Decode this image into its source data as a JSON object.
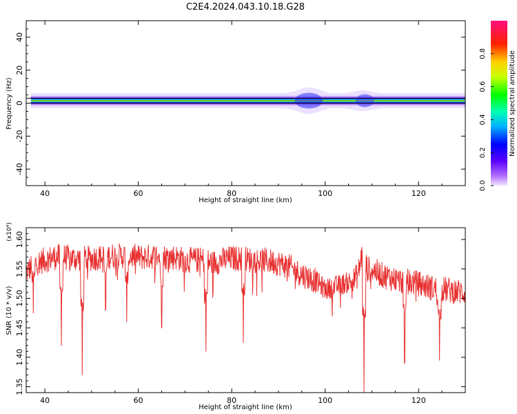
{
  "title": "C2E4.2024.043.10.18.G28",
  "chart_data": [
    {
      "type": "heatmap",
      "xlabel": "Height of straight line (km)",
      "ylabel": "Frequency (Hz)",
      "xlim": [
        36,
        130
      ],
      "ylim": [
        -50,
        50
      ],
      "xticks": [
        40,
        60,
        80,
        100,
        120
      ],
      "yticks": [
        -40,
        -20,
        0,
        20,
        40
      ],
      "colorbar": {
        "label": "Normalized spectral amplitude",
        "range": [
          0,
          1
        ],
        "ticks": [
          0.0,
          0.2,
          0.4,
          0.6,
          0.8
        ],
        "colormap": "rainbow (purple-blue-cyan-green-yellow-red-magenta)"
      },
      "band": {
        "center_hz": 1.5,
        "core_halfwidth_hz": 1.0,
        "note": "narrow high-amplitude band near 0-3 Hz across all heights; broadening near 93-100 km and 104-110 km"
      },
      "reference_lines_hz": [
        0,
        3
      ]
    },
    {
      "type": "line",
      "xlabel": "Height of straight line (km)",
      "ylabel": "SNR (10 * v/v)",
      "y_multiplier": "(x10⁴)",
      "xlim": [
        36,
        130
      ],
      "ylim": [
        1.34,
        1.62
      ],
      "xticks": [
        40,
        60,
        80,
        100,
        120
      ],
      "yticks": [
        1.35,
        1.4,
        1.45,
        1.5,
        1.55,
        1.6
      ],
      "line_color": "#e83030",
      "series": [
        {
          "x": [
            36,
            38,
            40,
            42,
            44,
            46,
            48,
            50,
            52,
            54,
            56,
            58,
            60,
            62,
            64,
            66,
            68,
            70,
            72,
            74,
            76,
            78,
            80,
            82,
            84,
            86,
            88,
            90,
            92,
            94,
            96,
            98,
            100,
            102,
            104,
            106,
            107,
            108,
            109,
            110,
            112,
            114,
            116,
            118,
            120,
            122,
            124,
            126,
            128,
            130
          ],
          "values": [
            1.545,
            1.56,
            1.565,
            1.57,
            1.57,
            1.568,
            1.567,
            1.568,
            1.57,
            1.572,
            1.572,
            1.572,
            1.57,
            1.57,
            1.572,
            1.57,
            1.57,
            1.565,
            1.565,
            1.565,
            1.56,
            1.565,
            1.568,
            1.568,
            1.565,
            1.565,
            1.563,
            1.56,
            1.555,
            1.545,
            1.537,
            1.53,
            1.515,
            1.52,
            1.525,
            1.53,
            1.54,
            1.58,
            1.55,
            1.55,
            1.54,
            1.535,
            1.53,
            1.528,
            1.525,
            1.52,
            1.515,
            1.515,
            1.512,
            1.51
          ]
        }
      ],
      "dips": [
        {
          "x": 37.5,
          "value": 1.475
        },
        {
          "x": 43.5,
          "value": 1.42
        },
        {
          "x": 48,
          "value": 1.37
        },
        {
          "x": 53,
          "value": 1.48
        },
        {
          "x": 57.5,
          "value": 1.46
        },
        {
          "x": 65,
          "value": 1.45
        },
        {
          "x": 74.5,
          "value": 1.41
        },
        {
          "x": 82.5,
          "value": 1.425
        },
        {
          "x": 108.3,
          "value": 1.34
        },
        {
          "x": 117,
          "value": 1.39
        },
        {
          "x": 124.5,
          "value": 1.395
        }
      ]
    }
  ]
}
